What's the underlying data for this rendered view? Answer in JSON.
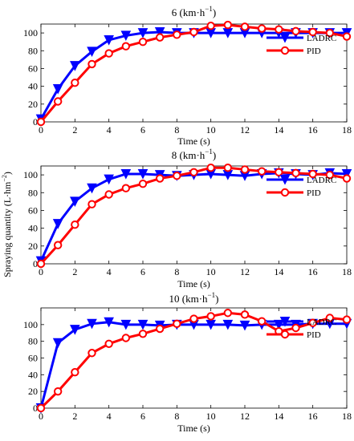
{
  "figure": {
    "ylabel": "Spraying quantity (L·hm",
    "ylabel_sup": "−2",
    "ylabel_close": ")"
  },
  "colors": {
    "LADRC": "#0000ff",
    "PID": "#ff0000"
  },
  "chart_data": [
    {
      "type": "line",
      "title": "6 (km·h",
      "title_sup": "−1",
      "title_close": ")",
      "xlabel": "Time (s)",
      "ylabel": "Spraying quantity (L·hm−2)",
      "xlim": [
        0,
        18
      ],
      "ylim": [
        0,
        110
      ],
      "xticks": [
        "0",
        "2",
        "4",
        "6",
        "8",
        "10",
        "12",
        "14",
        "16",
        "18"
      ],
      "yticks": [
        "0",
        "20",
        "40",
        "60",
        "80",
        "100"
      ],
      "grid": false,
      "legend": "right",
      "x": [
        0,
        1,
        2,
        3,
        4,
        5,
        6,
        7,
        8,
        9,
        10,
        11,
        12,
        13,
        14,
        15,
        16,
        17,
        18
      ],
      "series": [
        {
          "name": "LADRC",
          "marker": "triangle-down",
          "values": [
            3,
            37,
            63,
            79,
            92,
            97,
            100,
            101,
            100,
            100,
            100,
            100,
            100,
            100,
            100,
            100,
            100,
            100,
            100
          ]
        },
        {
          "name": "PID",
          "marker": "circle",
          "values": [
            0,
            23,
            44,
            65,
            77,
            85,
            90,
            95,
            98,
            101,
            108,
            109,
            107,
            105,
            104,
            102,
            101,
            100,
            96
          ]
        }
      ]
    },
    {
      "type": "line",
      "title": "8 (km·h",
      "title_sup": "−1",
      "title_close": ")",
      "xlabel": "Time (s)",
      "ylabel": "Spraying quantity (L·hm−2)",
      "xlim": [
        0,
        18
      ],
      "ylim": [
        0,
        110
      ],
      "xticks": [
        "0",
        "2",
        "4",
        "6",
        "8",
        "10",
        "12",
        "14",
        "16",
        "18"
      ],
      "yticks": [
        "0",
        "20",
        "40",
        "60",
        "80",
        "100"
      ],
      "grid": false,
      "legend": "right",
      "x": [
        0,
        1,
        2,
        3,
        4,
        5,
        6,
        7,
        8,
        9,
        10,
        11,
        12,
        13,
        14,
        15,
        16,
        17,
        18
      ],
      "series": [
        {
          "name": "LADRC",
          "marker": "triangle-down",
          "values": [
            3,
            45,
            70,
            85,
            95,
            101,
            101,
            100,
            99,
            100,
            101,
            100,
            99,
            101,
            102,
            101,
            100,
            102,
            101
          ]
        },
        {
          "name": "PID",
          "marker": "circle",
          "values": [
            0,
            21,
            44,
            67,
            78,
            85,
            90,
            96,
            99,
            103,
            108,
            108,
            106,
            104,
            103,
            102,
            101,
            100,
            96
          ]
        }
      ]
    },
    {
      "type": "line",
      "title": "10 (km·h",
      "title_sup": "−1",
      "title_close": ")",
      "xlabel": "Time (s)",
      "ylabel": "Spraying quantity (L·hm−2)",
      "xlim": [
        0,
        18
      ],
      "ylim": [
        0,
        120
      ],
      "xticks": [
        "0",
        "2",
        "4",
        "6",
        "8",
        "10",
        "12",
        "14",
        "16",
        "18"
      ],
      "yticks": [
        "0",
        "20",
        "40",
        "60",
        "80",
        "100"
      ],
      "grid": false,
      "legend": "right",
      "x": [
        0,
        1,
        2,
        3,
        4,
        5,
        6,
        7,
        8,
        9,
        10,
        11,
        12,
        13,
        14,
        15,
        16,
        17,
        18
      ],
      "series": [
        {
          "name": "LADRC",
          "marker": "triangle-down",
          "values": [
            0,
            78,
            94,
            101,
            103,
            100,
            100,
            99,
            100,
            100,
            100,
            100,
            99,
            100,
            100,
            100,
            101,
            101,
            101
          ]
        },
        {
          "name": "PID",
          "marker": "circle",
          "values": [
            0,
            20,
            43,
            66,
            77,
            84,
            89,
            95,
            101,
            107,
            110,
            114,
            112,
            104,
            92,
            96,
            102,
            108,
            106
          ]
        }
      ]
    }
  ]
}
